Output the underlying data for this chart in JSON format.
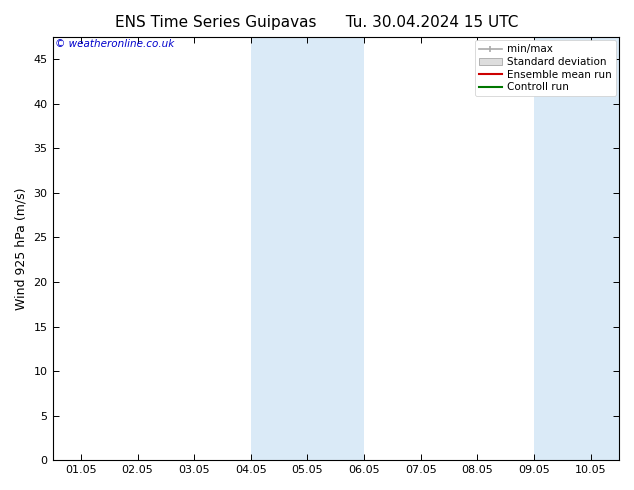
{
  "title_left": "ENS Time Series Guipavas",
  "title_right": "Tu. 30.04.2024 15 UTC",
  "ylabel": "Wind 925 hPa (m/s)",
  "ylim": [
    0,
    47.5
  ],
  "yticks": [
    0,
    5,
    10,
    15,
    20,
    25,
    30,
    35,
    40,
    45
  ],
  "x_labels": [
    "01.05",
    "02.05",
    "03.05",
    "04.05",
    "05.05",
    "06.05",
    "07.05",
    "08.05",
    "09.05",
    "10.05"
  ],
  "x_positions": [
    0,
    1,
    2,
    3,
    4,
    5,
    6,
    7,
    8,
    9
  ],
  "xlim": [
    -0.5,
    9.5
  ],
  "shaded_bands": [
    {
      "x_start": 3.0,
      "x_end": 5.0,
      "color": "#daeaf7"
    },
    {
      "x_start": 8.0,
      "x_end": 9.5,
      "color": "#daeaf7"
    }
  ],
  "watermark": "© weatheronline.co.uk",
  "watermark_color": "#0000cc",
  "background_color": "#ffffff",
  "title_fontsize": 11,
  "axis_label_fontsize": 9,
  "tick_fontsize": 8,
  "legend_items": [
    {
      "label": "min/max",
      "color": "#aaaaaa",
      "style": "minmax"
    },
    {
      "label": "Standard deviation",
      "color": "#cccccc",
      "style": "stddev"
    },
    {
      "label": "Ensemble mean run",
      "color": "#cc0000",
      "style": "line"
    },
    {
      "label": "Controll run",
      "color": "#007700",
      "style": "line"
    }
  ],
  "border_color": "#000000",
  "tick_color": "#000000"
}
